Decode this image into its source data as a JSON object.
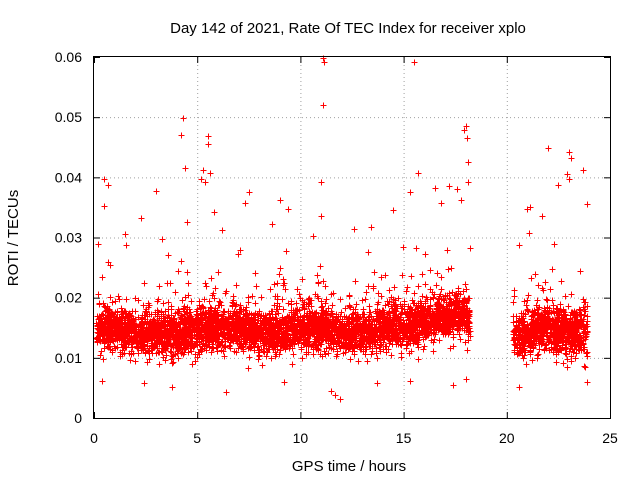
{
  "chart_data": {
    "type": "scatter",
    "title": "Day 142 of 2021, Rate Of TEC Index for receiver xplo",
    "xlabel": "GPS time / hours",
    "ylabel": "ROTI / TECUs",
    "xlim": [
      0,
      25
    ],
    "ylim": [
      0,
      0.06
    ],
    "x_ticks": [
      0,
      5,
      10,
      15,
      20,
      25
    ],
    "x_tick_labels": [
      "0",
      "5",
      "10",
      "15",
      "20",
      "25"
    ],
    "y_ticks": [
      0,
      0.01,
      0.02,
      0.03,
      0.04,
      0.05,
      0.06
    ],
    "y_tick_labels": [
      "0",
      "0.01",
      "0.02",
      "0.03",
      "0.04",
      "0.05",
      "0.06"
    ],
    "grid": true,
    "marker": "plus",
    "series_color": "#ff0000",
    "density_profile": {
      "x": [
        0.0,
        0.5,
        1.0,
        2.0,
        3.0,
        4.0,
        5.0,
        6.0,
        7.0,
        8.0,
        9.0,
        10.0,
        11.0,
        12.0,
        13.0,
        14.0,
        15.0,
        16.0,
        17.0,
        18.0,
        20.5,
        21.0,
        22.0,
        23.0,
        24.0
      ],
      "y_center": [
        0.015,
        0.015,
        0.015,
        0.014,
        0.014,
        0.014,
        0.015,
        0.015,
        0.015,
        0.014,
        0.014,
        0.015,
        0.015,
        0.014,
        0.014,
        0.015,
        0.015,
        0.016,
        0.017,
        0.017,
        0.014,
        0.014,
        0.015,
        0.014,
        0.014
      ]
    },
    "segments": [
      {
        "x_start": 0.1,
        "x_end": 18.2
      },
      {
        "x_start": 20.3,
        "x_end": 23.9
      }
    ],
    "outlier_points": [
      {
        "x": 11.1,
        "y": 0.0598
      },
      {
        "x": 11.15,
        "y": 0.0592
      },
      {
        "x": 15.5,
        "y": 0.0592
      },
      {
        "x": 11.1,
        "y": 0.052
      },
      {
        "x": 4.3,
        "y": 0.0498
      },
      {
        "x": 4.2,
        "y": 0.047
      },
      {
        "x": 5.5,
        "y": 0.0468
      },
      {
        "x": 5.5,
        "y": 0.0455
      },
      {
        "x": 18.0,
        "y": 0.0485
      },
      {
        "x": 17.95,
        "y": 0.0478
      },
      {
        "x": 18.05,
        "y": 0.0465
      },
      {
        "x": 22.0,
        "y": 0.0448
      },
      {
        "x": 23.0,
        "y": 0.0442
      },
      {
        "x": 23.1,
        "y": 0.0432
      },
      {
        "x": 18.1,
        "y": 0.0425
      },
      {
        "x": 4.4,
        "y": 0.0415
      },
      {
        "x": 5.3,
        "y": 0.0412
      },
      {
        "x": 5.6,
        "y": 0.0408
      },
      {
        "x": 15.7,
        "y": 0.0408
      },
      {
        "x": 23.7,
        "y": 0.0412
      },
      {
        "x": 22.9,
        "y": 0.0405
      },
      {
        "x": 23.0,
        "y": 0.0398
      },
      {
        "x": 0.5,
        "y": 0.0398
      },
      {
        "x": 5.2,
        "y": 0.0398
      },
      {
        "x": 11.0,
        "y": 0.0393
      },
      {
        "x": 0.7,
        "y": 0.0388
      },
      {
        "x": 5.4,
        "y": 0.0392
      },
      {
        "x": 22.5,
        "y": 0.0388
      },
      {
        "x": 17.2,
        "y": 0.0385
      },
      {
        "x": 16.5,
        "y": 0.0382
      },
      {
        "x": 3.0,
        "y": 0.0378
      },
      {
        "x": 7.5,
        "y": 0.0375
      },
      {
        "x": 15.3,
        "y": 0.0375
      },
      {
        "x": 17.6,
        "y": 0.038
      },
      {
        "x": 9.0,
        "y": 0.0362
      },
      {
        "x": 7.3,
        "y": 0.0358
      },
      {
        "x": 23.9,
        "y": 0.0355
      },
      {
        "x": 0.5,
        "y": 0.0352
      },
      {
        "x": 21.0,
        "y": 0.0348
      },
      {
        "x": 9.4,
        "y": 0.0348
      },
      {
        "x": 14.5,
        "y": 0.0345
      },
      {
        "x": 5.8,
        "y": 0.0342
      },
      {
        "x": 21.7,
        "y": 0.0335
      },
      {
        "x": 2.3,
        "y": 0.0332
      },
      {
        "x": 11.0,
        "y": 0.0335
      },
      {
        "x": 16.8,
        "y": 0.0358
      },
      {
        "x": 17.8,
        "y": 0.0362
      },
      {
        "x": 4.5,
        "y": 0.0325
      },
      {
        "x": 8.6,
        "y": 0.0322
      },
      {
        "x": 13.4,
        "y": 0.0318
      },
      {
        "x": 12.6,
        "y": 0.0314
      },
      {
        "x": 6.2,
        "y": 0.0312
      },
      {
        "x": 1.5,
        "y": 0.0305
      },
      {
        "x": 10.6,
        "y": 0.0302
      },
      {
        "x": 3.3,
        "y": 0.0298
      },
      {
        "x": 18.1,
        "y": 0.0392
      },
      {
        "x": 22.3,
        "y": 0.029
      },
      {
        "x": 20.6,
        "y": 0.0288
      },
      {
        "x": 11.7,
        "y": 0.0038
      },
      {
        "x": 11.9,
        "y": 0.0032
      },
      {
        "x": 11.5,
        "y": 0.0045
      },
      {
        "x": 6.4,
        "y": 0.0043
      },
      {
        "x": 3.8,
        "y": 0.0052
      },
      {
        "x": 20.6,
        "y": 0.0052
      },
      {
        "x": 17.4,
        "y": 0.0055
      },
      {
        "x": 2.4,
        "y": 0.0058
      },
      {
        "x": 0.4,
        "y": 0.0062
      },
      {
        "x": 23.9,
        "y": 0.006
      },
      {
        "x": 13.7,
        "y": 0.0058
      },
      {
        "x": 9.2,
        "y": 0.006
      },
      {
        "x": 15.3,
        "y": 0.0062
      },
      {
        "x": 18.0,
        "y": 0.0065
      }
    ],
    "dense_points_approx_count": 5200
  }
}
